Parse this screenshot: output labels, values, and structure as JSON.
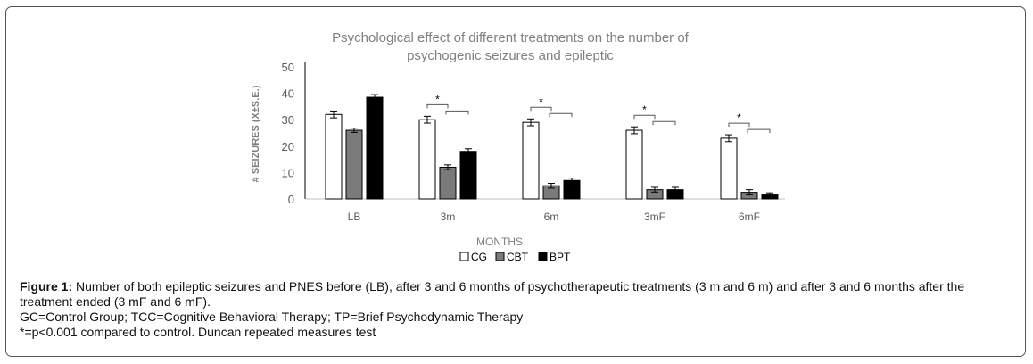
{
  "chart_data": {
    "type": "bar",
    "title_lines": [
      "Psychological effect of different treatments on the number of",
      "psychogenic seizures and epileptic"
    ],
    "xlabel": "MONTHS",
    "ylabel": "# SEIZURES (X±S.E.)",
    "ylim": [
      0,
      50
    ],
    "yticks": [
      0,
      10,
      20,
      30,
      40,
      50
    ],
    "grid": false,
    "legend_position": "bottom-center",
    "categories": [
      "LB",
      "3m",
      "6m",
      "3mF",
      "6mF"
    ],
    "series": [
      {
        "name": "CG",
        "color": "#ffffff",
        "values": [
          32,
          30,
          29,
          26,
          23
        ],
        "errors": [
          1.3,
          1.3,
          1.3,
          1.3,
          1.3
        ]
      },
      {
        "name": "CBT",
        "color": "#7a7a7a",
        "values": [
          26,
          12,
          5,
          3.5,
          2.5
        ],
        "errors": [
          0.8,
          0.9,
          0.9,
          0.9,
          1.0
        ]
      },
      {
        "name": "BPT",
        "color": "#000000",
        "values": [
          38.5,
          18,
          7,
          3.5,
          1.5
        ],
        "errors": [
          1.0,
          1.0,
          0.9,
          0.9,
          0.8
        ]
      }
    ],
    "significance": [
      {
        "category": "3m",
        "label": "*"
      },
      {
        "category": "6m",
        "label": "*"
      },
      {
        "category": "3mF",
        "label": "*"
      },
      {
        "category": "6mF",
        "label": "*"
      }
    ]
  },
  "caption": {
    "label": "Figure 1:",
    "text": " Number of both epileptic seizures and PNES before (LB), after 3 and 6 months of psychotherapeutic treatments (3 m and 6 m) and after 3 and 6 months after the treatment ended (3 mF and 6 mF).",
    "line2": "GC=Control Group; TCC=Cognitive Behavioral Therapy; TP=Brief Psychodynamic Therapy",
    "line3": "*=p<0.001 compared to control. Duncan repeated measures test"
  }
}
